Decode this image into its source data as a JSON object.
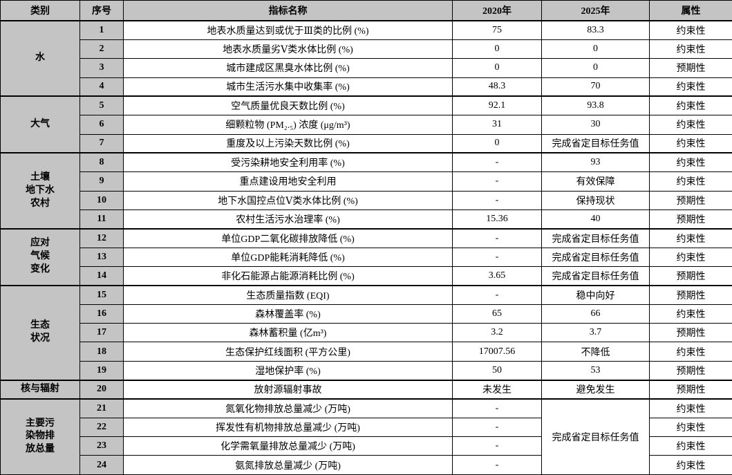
{
  "table": {
    "colors": {
      "header_bg": "#c4c4c4",
      "border": "#000000",
      "cell_bg": "#ffffff"
    },
    "header": {
      "category": "类别",
      "index": "序号",
      "name": "指标名称",
      "y2020": "2020年",
      "y2025": "2025年",
      "attribute": "属性"
    },
    "groups": [
      {
        "category": "水",
        "rows": [
          {
            "index": "1",
            "name": "地表水质量达到或优于Ⅲ类的比例 (%)",
            "y2020": "75",
            "y2025": "83.3",
            "attribute": "约束性"
          },
          {
            "index": "2",
            "name": "地表水质量劣Ⅴ类水体比例 (%)",
            "y2020": "0",
            "y2025": "0",
            "attribute": "约束性"
          },
          {
            "index": "3",
            "name": "城市建成区黑臭水体比例 (%)",
            "y2020": "0",
            "y2025": "0",
            "attribute": "预期性"
          },
          {
            "index": "4",
            "name": "城市生活污水集中收集率 (%)",
            "y2020": "48.3",
            "y2025": "70",
            "attribute": "约束性"
          }
        ]
      },
      {
        "category": "大气",
        "rows": [
          {
            "index": "5",
            "name": "空气质量优良天数比例 (%)",
            "y2020": "92.1",
            "y2025": "93.8",
            "attribute": "约束性"
          },
          {
            "index": "6",
            "name": "细颗粒物 (PM₂.₅) 浓度 (μg/m³)",
            "y2020": "31",
            "y2025": "30",
            "attribute": "约束性"
          },
          {
            "index": "7",
            "name": "重度及以上污染天数比例 (%)",
            "y2020": "0",
            "y2025": "完成省定目标任务值",
            "attribute": "约束性"
          }
        ]
      },
      {
        "category": "土壤\n地下水\n农村",
        "rows": [
          {
            "index": "8",
            "name": "受污染耕地安全利用率 (%)",
            "y2020": "-",
            "y2025": "93",
            "attribute": "约束性"
          },
          {
            "index": "9",
            "name": "重点建设用地安全利用",
            "y2020": "-",
            "y2025": "有效保障",
            "attribute": "约束性"
          },
          {
            "index": "10",
            "name": "地下水国控点位Ⅴ类水体比例 (%)",
            "y2020": "-",
            "y2025": "保持现状",
            "attribute": "预期性"
          },
          {
            "index": "11",
            "name": "农村生活污水治理率 (%)",
            "y2020": "15.36",
            "y2025": "40",
            "attribute": "预期性"
          }
        ]
      },
      {
        "category": "应对\n气候\n变化",
        "rows": [
          {
            "index": "12",
            "name": "单位GDP二氧化碳排放降低 (%)",
            "y2020": "-",
            "y2025": "完成省定目标任务值",
            "attribute": "约束性"
          },
          {
            "index": "13",
            "name": "单位GDP能耗消耗降低 (%)",
            "y2020": "-",
            "y2025": "完成省定目标任务值",
            "attribute": "约束性"
          },
          {
            "index": "14",
            "name": "非化石能源占能源消耗比例 (%)",
            "y2020": "3.65",
            "y2025": "完成省定目标任务值",
            "attribute": "预期性"
          }
        ]
      },
      {
        "category": "生态\n状况",
        "rows": [
          {
            "index": "15",
            "name": "生态质量指数 (EQI)",
            "y2020": "-",
            "y2025": "稳中向好",
            "attribute": "预期性"
          },
          {
            "index": "16",
            "name": "森林覆盖率 (%)",
            "y2020": "65",
            "y2025": "66",
            "attribute": "约束性"
          },
          {
            "index": "17",
            "name": "森林蓄积量 (亿m³)",
            "y2020": "3.2",
            "y2025": "3.7",
            "attribute": "预期性"
          },
          {
            "index": "18",
            "name": "生态保护红线面积 (平方公里)",
            "y2020": "17007.56",
            "y2025": "不降低",
            "attribute": "约束性"
          },
          {
            "index": "19",
            "name": "湿地保护率 (%)",
            "y2020": "50",
            "y2025": "53",
            "attribute": "预期性"
          }
        ]
      },
      {
        "category": "核与辐射",
        "rows": [
          {
            "index": "20",
            "name": "放射源辐射事故",
            "y2020": "未发生",
            "y2025": "避免发生",
            "attribute": "预期性"
          }
        ]
      },
      {
        "category": "主要污\n染物排\n放总量",
        "merged_2025": "完成省定目标任务值",
        "rows": [
          {
            "index": "21",
            "name": "氮氧化物排放总量减少 (万吨)",
            "y2020": "-",
            "attribute": "约束性"
          },
          {
            "index": "22",
            "name": "挥发性有机物排放总量减少 (万吨)",
            "y2020": "-",
            "attribute": "约束性"
          },
          {
            "index": "23",
            "name": "化学需氧量排放总量减少 (万吨)",
            "y2020": "-",
            "attribute": "约束性"
          },
          {
            "index": "24",
            "name": "氨氮排放总量减少 (万吨)",
            "y2020": "-",
            "attribute": "约束性"
          }
        ]
      }
    ]
  }
}
